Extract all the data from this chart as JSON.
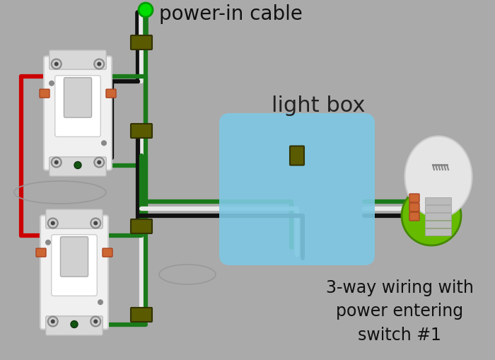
{
  "bg_color": "#aaaaaa",
  "title": "power-in cable",
  "subtitle": "3-way wiring with\npower entering\nswitch #1",
  "light_box_label": "light box",
  "title_fontsize": 20,
  "subtitle_fontsize": 17,
  "light_box_color": "#7ec8e3",
  "green_color": "#1a7a1a",
  "bright_green": "#00dd00",
  "black_color": "#111111",
  "white_color": "#e8e8e8",
  "red_color": "#cc0000",
  "olive_color": "#5a5a00",
  "orange_color": "#cc6633",
  "switch_fg": "#f0f0f0",
  "switch_border": "#999999",
  "screw_gray": "#888888",
  "bulb_green": "#66bb00",
  "bulb_glass": "#e0e0e0",
  "bulb_base": "#aaaaaa"
}
